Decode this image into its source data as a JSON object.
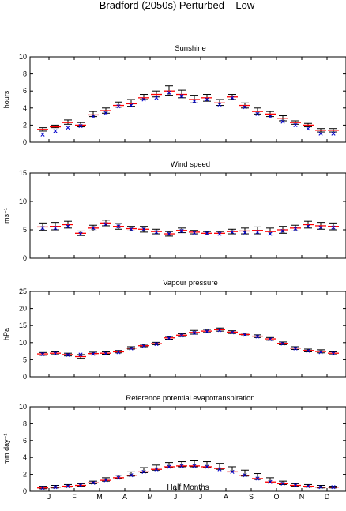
{
  "figure": {
    "title": "Bradford (2050s) Perturbed – Low",
    "xlabel": "Half Months",
    "month_labels": [
      "J",
      "F",
      "M",
      "A",
      "M",
      "J",
      "J",
      "A",
      "S",
      "O",
      "N",
      "D"
    ]
  },
  "colors": {
    "bar": "#000000",
    "mean": "#ff0000",
    "obs": "#0000cc",
    "axis": "#000000"
  },
  "chart_data": [
    {
      "type": "scatter",
      "title": "Sunshine",
      "ylabel": "hours",
      "ylim": [
        0,
        10
      ],
      "yticks": [
        0,
        2,
        4,
        6,
        8,
        10
      ],
      "x": [
        1,
        2,
        3,
        4,
        5,
        6,
        7,
        8,
        9,
        10,
        11,
        12,
        13,
        14,
        15,
        16,
        17,
        18,
        19,
        20,
        21,
        22,
        23,
        24
      ],
      "series": [
        {
          "role": "mean",
          "values": [
            1.5,
            1.8,
            2.3,
            2.0,
            3.2,
            3.7,
            4.3,
            4.5,
            5.2,
            5.6,
            6.0,
            5.6,
            5.0,
            5.2,
            4.6,
            5.3,
            4.3,
            3.6,
            3.3,
            2.8,
            2.3,
            2.0,
            1.4,
            1.4
          ]
        },
        {
          "role": "upper",
          "values": [
            1.7,
            2.0,
            2.6,
            2.3,
            3.6,
            4.0,
            4.7,
            5.0,
            5.6,
            6.0,
            6.6,
            6.1,
            5.5,
            5.6,
            5.0,
            5.6,
            4.6,
            4.0,
            3.6,
            3.1,
            2.5,
            2.2,
            1.6,
            1.6
          ]
        },
        {
          "role": "lower",
          "values": [
            1.3,
            1.7,
            2.1,
            1.8,
            3.0,
            3.4,
            4.1,
            4.2,
            5.0,
            5.3,
            5.5,
            5.2,
            4.6,
            4.8,
            4.3,
            5.0,
            4.0,
            3.3,
            3.0,
            2.5,
            2.1,
            1.8,
            1.2,
            1.2
          ]
        },
        {
          "role": "obs",
          "values": [
            0.9,
            1.3,
            1.7,
            1.9,
            3.0,
            3.4,
            4.2,
            4.3,
            5.0,
            5.2,
            5.8,
            5.4,
            4.8,
            5.0,
            4.4,
            5.2,
            4.1,
            3.3,
            3.0,
            2.4,
            2.0,
            1.6,
            1.0,
            1.0
          ]
        }
      ]
    },
    {
      "type": "scatter",
      "title": "Wind speed",
      "ylabel": "ms⁻¹",
      "ylim": [
        0,
        15
      ],
      "yticks": [
        0,
        5,
        10,
        15
      ],
      "x": [
        1,
        2,
        3,
        4,
        5,
        6,
        7,
        8,
        9,
        10,
        11,
        12,
        13,
        14,
        15,
        16,
        17,
        18,
        19,
        20,
        21,
        22,
        23,
        24
      ],
      "series": [
        {
          "role": "mean",
          "values": [
            5.5,
            5.6,
            5.9,
            4.4,
            5.3,
            6.2,
            5.6,
            5.2,
            5.1,
            4.7,
            4.3,
            4.9,
            4.6,
            4.4,
            4.4,
            4.7,
            4.8,
            4.9,
            4.7,
            5.0,
            5.3,
            5.9,
            5.7,
            5.6
          ]
        },
        {
          "role": "upper",
          "values": [
            6.2,
            6.3,
            6.5,
            4.8,
            5.8,
            6.7,
            6.1,
            5.6,
            5.6,
            5.1,
            4.7,
            5.3,
            4.9,
            4.7,
            4.7,
            5.1,
            5.3,
            5.5,
            5.3,
            5.6,
            5.8,
            6.5,
            6.3,
            6.2
          ]
        },
        {
          "role": "lower",
          "values": [
            4.9,
            5.0,
            5.3,
            4.0,
            4.8,
            5.7,
            5.1,
            4.8,
            4.6,
            4.3,
            3.9,
            4.5,
            4.3,
            4.1,
            4.1,
            4.3,
            4.3,
            4.3,
            4.1,
            4.4,
            4.8,
            5.3,
            5.1,
            5.0
          ]
        },
        {
          "role": "obs",
          "values": [
            5.3,
            5.3,
            5.6,
            4.3,
            5.3,
            6.0,
            5.6,
            5.1,
            5.1,
            4.6,
            4.3,
            4.8,
            4.5,
            4.4,
            4.3,
            4.6,
            4.5,
            4.6,
            4.3,
            4.8,
            5.2,
            5.6,
            5.4,
            5.4
          ]
        }
      ]
    },
    {
      "type": "scatter",
      "title": "Vapour pressure",
      "ylabel": "hPa",
      "ylim": [
        0,
        25
      ],
      "yticks": [
        0,
        5,
        10,
        15,
        20,
        25
      ],
      "x": [
        1,
        2,
        3,
        4,
        5,
        6,
        7,
        8,
        9,
        10,
        11,
        12,
        13,
        14,
        15,
        16,
        17,
        18,
        19,
        20,
        21,
        22,
        23,
        24
      ],
      "series": [
        {
          "role": "mean",
          "values": [
            6.7,
            6.9,
            6.5,
            5.9,
            6.8,
            6.9,
            7.3,
            8.4,
            9.1,
            9.7,
            11.4,
            12.2,
            13.0,
            13.4,
            13.8,
            13.1,
            12.4,
            11.9,
            11.1,
            9.8,
            8.4,
            7.7,
            7.4,
            6.9
          ]
        },
        {
          "role": "upper",
          "values": [
            7.1,
            7.3,
            6.9,
            6.5,
            7.2,
            7.3,
            7.7,
            8.8,
            9.5,
            10.1,
            11.8,
            12.6,
            13.6,
            13.9,
            14.3,
            13.5,
            12.8,
            12.3,
            11.5,
            10.2,
            8.8,
            8.1,
            7.9,
            7.3
          ]
        },
        {
          "role": "lower",
          "values": [
            6.3,
            6.5,
            6.1,
            5.4,
            6.4,
            6.6,
            7.0,
            8.1,
            8.8,
            9.4,
            11.0,
            11.8,
            12.5,
            13.0,
            13.4,
            12.7,
            12.0,
            11.5,
            10.7,
            9.4,
            8.0,
            7.3,
            7.0,
            6.5
          ]
        },
        {
          "role": "obs",
          "values": [
            6.6,
            6.8,
            6.4,
            6.5,
            6.7,
            6.8,
            7.2,
            8.3,
            9.0,
            9.6,
            11.3,
            12.1,
            12.9,
            13.3,
            13.7,
            13.0,
            12.3,
            11.8,
            11.0,
            9.7,
            8.3,
            7.6,
            7.2,
            6.8
          ]
        }
      ]
    },
    {
      "type": "scatter",
      "title": "Reference potential evapotranspiration",
      "ylabel": "mm day⁻¹",
      "ylim": [
        0,
        10
      ],
      "yticks": [
        0,
        2,
        4,
        6,
        8,
        10
      ],
      "x": [
        1,
        2,
        3,
        4,
        5,
        6,
        7,
        8,
        9,
        10,
        11,
        12,
        13,
        14,
        15,
        16,
        17,
        18,
        19,
        20,
        21,
        22,
        23,
        24
      ],
      "series": [
        {
          "role": "mean",
          "values": [
            0.4,
            0.5,
            0.6,
            0.7,
            1.0,
            1.3,
            1.6,
            1.9,
            2.3,
            2.6,
            2.9,
            3.0,
            3.0,
            2.9,
            2.7,
            2.3,
            1.9,
            1.5,
            1.1,
            0.9,
            0.7,
            0.6,
            0.5,
            0.5
          ]
        },
        {
          "role": "upper",
          "values": [
            0.6,
            0.7,
            0.8,
            0.9,
            1.2,
            1.6,
            1.9,
            2.3,
            2.8,
            3.1,
            3.4,
            3.5,
            3.6,
            3.5,
            3.3,
            2.9,
            2.5,
            2.1,
            1.6,
            1.2,
            0.9,
            0.8,
            0.7,
            0.6
          ]
        },
        {
          "role": "lower",
          "values": [
            0.3,
            0.4,
            0.5,
            0.6,
            0.9,
            1.2,
            1.5,
            1.8,
            2.2,
            2.5,
            2.8,
            2.9,
            2.9,
            2.8,
            2.6,
            2.3,
            1.8,
            1.4,
            1.0,
            0.8,
            0.6,
            0.5,
            0.4,
            0.4
          ]
        },
        {
          "role": "obs",
          "values": [
            0.4,
            0.5,
            0.6,
            0.7,
            1.0,
            1.3,
            1.6,
            1.9,
            2.3,
            2.6,
            2.9,
            3.0,
            3.0,
            2.9,
            2.6,
            2.3,
            1.9,
            1.5,
            1.1,
            0.9,
            0.7,
            0.6,
            0.5,
            0.5
          ]
        }
      ]
    }
  ]
}
